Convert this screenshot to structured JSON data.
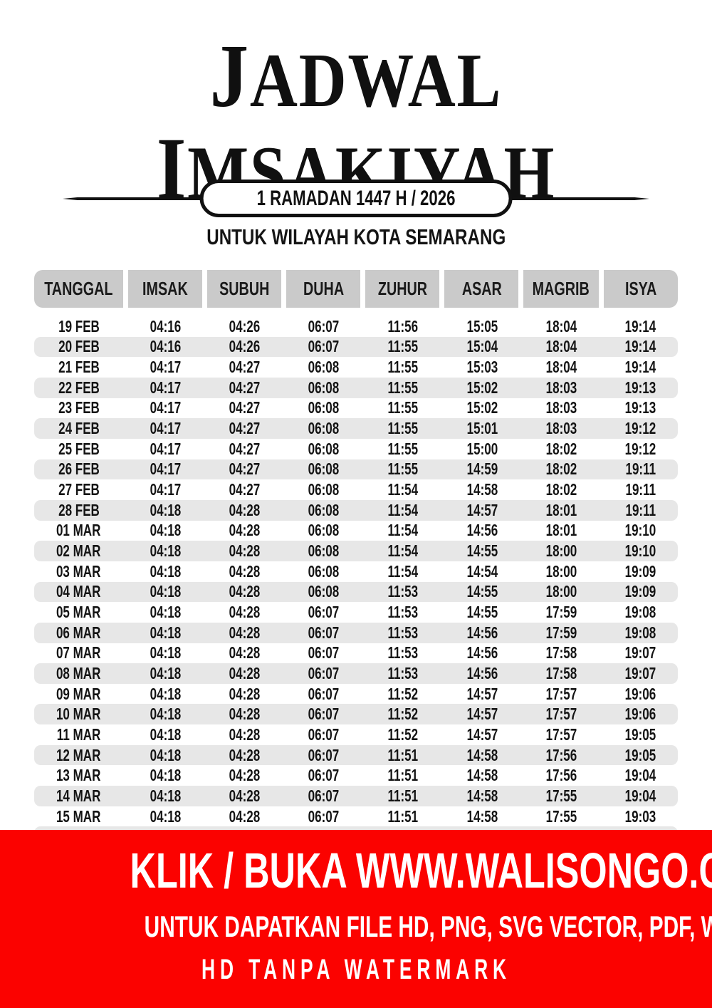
{
  "header": {
    "title_line1": "JADWAL",
    "title_line2": "IMSAKIYAH",
    "badge": "1 RAMADAN 1447 H / 2026",
    "subtitle": "UNTUK WILAYAH KOTA SEMARANG"
  },
  "table": {
    "columns": [
      "TANGGAL",
      "IMSAK",
      "SUBUH",
      "DUHA",
      "ZUHUR",
      "ASAR",
      "MAGRIB",
      "ISYA"
    ],
    "rows": [
      [
        "19 FEB",
        "04:16",
        "04:26",
        "06:07",
        "11:56",
        "15:05",
        "18:04",
        "19:14"
      ],
      [
        "20 FEB",
        "04:16",
        "04:26",
        "06:07",
        "11:55",
        "15:04",
        "18:04",
        "19:14"
      ],
      [
        "21 FEB",
        "04:17",
        "04:27",
        "06:08",
        "11:55",
        "15:03",
        "18:04",
        "19:14"
      ],
      [
        "22 FEB",
        "04:17",
        "04:27",
        "06:08",
        "11:55",
        "15:02",
        "18:03",
        "19:13"
      ],
      [
        "23 FEB",
        "04:17",
        "04:27",
        "06:08",
        "11:55",
        "15:02",
        "18:03",
        "19:13"
      ],
      [
        "24 FEB",
        "04:17",
        "04:27",
        "06:08",
        "11:55",
        "15:01",
        "18:03",
        "19:12"
      ],
      [
        "25 FEB",
        "04:17",
        "04:27",
        "06:08",
        "11:55",
        "15:00",
        "18:02",
        "19:12"
      ],
      [
        "26 FEB",
        "04:17",
        "04:27",
        "06:08",
        "11:55",
        "14:59",
        "18:02",
        "19:11"
      ],
      [
        "27 FEB",
        "04:17",
        "04:27",
        "06:08",
        "11:54",
        "14:58",
        "18:02",
        "19:11"
      ],
      [
        "28 FEB",
        "04:18",
        "04:28",
        "06:08",
        "11:54",
        "14:57",
        "18:01",
        "19:11"
      ],
      [
        "01 MAR",
        "04:18",
        "04:28",
        "06:08",
        "11:54",
        "14:56",
        "18:01",
        "19:10"
      ],
      [
        "02 MAR",
        "04:18",
        "04:28",
        "06:08",
        "11:54",
        "14:55",
        "18:00",
        "19:10"
      ],
      [
        "03 MAR",
        "04:18",
        "04:28",
        "06:08",
        "11:54",
        "14:54",
        "18:00",
        "19:09"
      ],
      [
        "04 MAR",
        "04:18",
        "04:28",
        "06:08",
        "11:53",
        "14:55",
        "18:00",
        "19:09"
      ],
      [
        "05 MAR",
        "04:18",
        "04:28",
        "06:07",
        "11:53",
        "14:55",
        "17:59",
        "19:08"
      ],
      [
        "06 MAR",
        "04:18",
        "04:28",
        "06:07",
        "11:53",
        "14:56",
        "17:59",
        "19:08"
      ],
      [
        "07 MAR",
        "04:18",
        "04:28",
        "06:07",
        "11:53",
        "14:56",
        "17:58",
        "19:07"
      ],
      [
        "08 MAR",
        "04:18",
        "04:28",
        "06:07",
        "11:53",
        "14:56",
        "17:58",
        "19:07"
      ],
      [
        "09 MAR",
        "04:18",
        "04:28",
        "06:07",
        "11:52",
        "14:57",
        "17:57",
        "19:06"
      ],
      [
        "10 MAR",
        "04:18",
        "04:28",
        "06:07",
        "11:52",
        "14:57",
        "17:57",
        "19:06"
      ],
      [
        "11 MAR",
        "04:18",
        "04:28",
        "06:07",
        "11:52",
        "14:57",
        "17:57",
        "19:05"
      ],
      [
        "12 MAR",
        "04:18",
        "04:28",
        "06:07",
        "11:51",
        "14:58",
        "17:56",
        "19:05"
      ],
      [
        "13 MAR",
        "04:18",
        "04:28",
        "06:07",
        "11:51",
        "14:58",
        "17:56",
        "19:04"
      ],
      [
        "14 MAR",
        "04:18",
        "04:28",
        "06:07",
        "11:51",
        "14:58",
        "17:55",
        "19:04"
      ],
      [
        "15 MAR",
        "04:18",
        "04:28",
        "06:07",
        "11:51",
        "14:58",
        "17:55",
        "19:03"
      ]
    ]
  },
  "footer": {
    "line1": "KLIK / BUKA WWW.WALISONGO.CO.ID",
    "line2": "UNTUK DAPATKAN FILE HD, PNG, SVG VECTOR, PDF, WORD, EXCEL",
    "line3": "HD TANPA WATERMARK"
  },
  "colors": {
    "banner_red": "#fb0200",
    "table_header_gray": "#cacaca",
    "row_stripe_gray": "#e7e7e7",
    "text_black": "#141414"
  }
}
